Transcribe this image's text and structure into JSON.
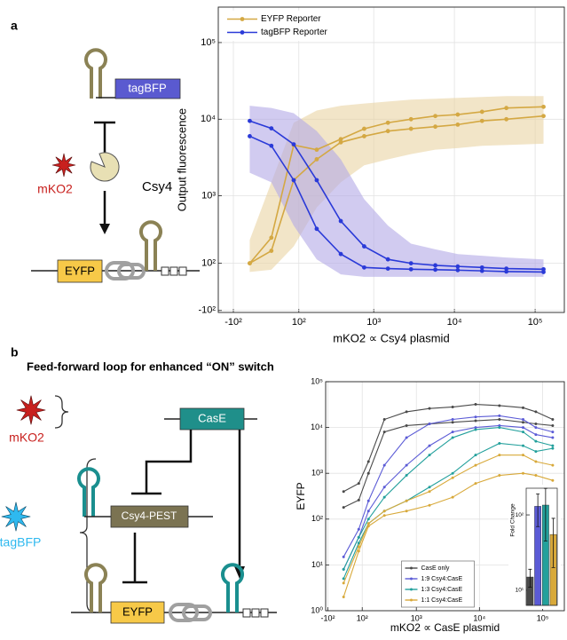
{
  "diagram": {
    "a": {
      "panel_label": "a",
      "reporter": "tagBFP",
      "marker": "mKO2",
      "protein": "Csy4",
      "output": "EYFP"
    },
    "b": {
      "panel_label": "b",
      "title": "Feed-forward loop for enhanced “ON” switch",
      "marker1": "mKO2",
      "marker2": "tagBFP",
      "node1": "CasE",
      "node2": "Csy4-PEST",
      "output": "EYFP"
    }
  },
  "chart_data": [
    {
      "type": "line",
      "xlabel": "mKO2 ∝ Csy4 plasmid",
      "ylabel": "Output fluorescence",
      "xscale": "biexponential",
      "yscale": "biexponential",
      "xlim": [
        -170,
        230000
      ],
      "ylim": [
        -110,
        290000
      ],
      "xticks": [
        {
          "value": -100,
          "label": "-10²"
        },
        {
          "value": 100,
          "label": "10²"
        },
        {
          "value": 1000,
          "label": "10³"
        },
        {
          "value": 10000,
          "label": "10⁴"
        },
        {
          "value": 100000,
          "label": "10⁵"
        }
      ],
      "yticks": [
        {
          "value": -100,
          "label": "-10²"
        },
        {
          "value": 100,
          "label": "10²"
        },
        {
          "value": 1000,
          "label": "10³"
        },
        {
          "value": 10000,
          "label": "10⁴"
        },
        {
          "value": 100000,
          "label": "10⁵"
        }
      ],
      "grid": true,
      "legend": "upper left",
      "x": [
        -45,
        14,
        81,
        186,
        386,
        760,
        1500,
        2900,
        5800,
        11000,
        22000,
        44000,
        127000
      ],
      "series": [
        {
          "name": "EYFP Reporter",
          "color": "#d4a843",
          "band_color": "#e9d3a3",
          "lines": [
            [
              100,
              270,
              4600,
              4000,
              5500,
              7500,
              9000,
              10000,
              11000,
              11500,
              12500,
              14000,
              14500
            ],
            [
              100,
              170,
              1600,
              3000,
              5000,
              6000,
              7000,
              7500,
              8000,
              8500,
              9500,
              10000,
              11000
            ]
          ],
          "band_upper": [
            250,
            1500,
            9000,
            13000,
            15000,
            16000,
            17000,
            18000,
            18500,
            19000,
            19500,
            20000,
            20000
          ],
          "band_lower": [
            60,
            70,
            200,
            700,
            1500,
            2500,
            3000,
            3500,
            4000,
            4200,
            4500,
            4600,
            4800
          ]
        },
        {
          "name": "tagBFP Reporter",
          "color": "#2a3ad8",
          "band_color": "#b3a8e6",
          "lines": [
            [
              9500,
              7600,
              4700,
              1600,
              460,
              200,
              120,
              100,
              90,
              85,
              80,
              75,
              72
            ],
            [
              6000,
              4500,
              1600,
              360,
              150,
              80,
              75,
              72,
              70,
              68,
              65,
              62,
              60
            ]
          ],
          "band_upper": [
            15000,
            14000,
            12000,
            7000,
            3000,
            900,
            400,
            220,
            180,
            150,
            140,
            130,
            120
          ],
          "band_lower": [
            2000,
            1500,
            400,
            120,
            50,
            40,
            40,
            40,
            40,
            40,
            40,
            40,
            40
          ]
        }
      ]
    },
    {
      "type": "line",
      "xlabel": "mKO2 ∝ CasE plasmid",
      "ylabel": "EYFP",
      "xscale": "biexponential",
      "yscale": "log",
      "xlim": [
        -115,
        220000
      ],
      "ylim": [
        1,
        100000
      ],
      "xticks": [
        {
          "value": -100,
          "label": "-10²"
        },
        {
          "value": 100,
          "label": "10²"
        },
        {
          "value": 1000,
          "label": "10³"
        },
        {
          "value": 10000,
          "label": "10⁴"
        },
        {
          "value": 100000,
          "label": "10⁵"
        }
      ],
      "yticks": [
        {
          "value": 1,
          "label": "10⁰"
        },
        {
          "value": 10,
          "label": "10¹"
        },
        {
          "value": 100,
          "label": "10²"
        },
        {
          "value": 1000,
          "label": "10³"
        },
        {
          "value": 10000,
          "label": "10⁴"
        },
        {
          "value": 100000,
          "label": "10⁵"
        }
      ],
      "grid": true,
      "legend": "lower center",
      "x": [
        -8,
        78,
        144,
        296,
        695,
        1620,
        3770,
        8700,
        20700,
        49000,
        78000,
        144000
      ],
      "series": [
        {
          "name": "CasE only",
          "color": "#4a4a4a",
          "lines": [
            [
              400,
              600,
              1800,
              15000,
              22000,
              26000,
              28000,
              32000,
              30000,
              27000,
              22000,
              15000
            ],
            [
              180,
              260,
              1000,
              8000,
              11000,
              12000,
              13000,
              14000,
              15000,
              13000,
              12000,
              11000
            ]
          ]
        },
        {
          "name": "1:9 Csy4:CasE",
          "color": "#5b5bd6",
          "lines": [
            [
              15,
              60,
              250,
              1500,
              6000,
              12000,
              15000,
              17000,
              18000,
              15000,
              10000,
              8000
            ],
            [
              8,
              40,
              150,
              500,
              1500,
              4000,
              8000,
              10000,
              11000,
              10000,
              7000,
              6000
            ]
          ]
        },
        {
          "name": "1:3 Csy4:CasE",
          "color": "#23a09c",
          "lines": [
            [
              8,
              40,
              100,
              300,
              900,
              2500,
              6000,
              9000,
              10000,
              8000,
              5000,
              4000
            ],
            [
              5,
              30,
              80,
              150,
              250,
              500,
              1000,
              2500,
              4500,
              4000,
              3000,
              3500
            ]
          ]
        },
        {
          "name": "1:1 Csy4:CasE",
          "color": "#d8a93a",
          "lines": [
            [
              4,
              25,
              80,
              150,
              250,
              400,
              800,
              1500,
              2500,
              2500,
              1800,
              1500
            ],
            [
              2,
              20,
              70,
              120,
              150,
              200,
              300,
              600,
              900,
              1000,
              900,
              700
            ]
          ]
        }
      ]
    },
    {
      "type": "bar",
      "ylabel": "Fold Change",
      "yscale": "log",
      "ylim": [
        6.3,
        226
      ],
      "yticks": [
        {
          "value": 10,
          "label": "10¹"
        },
        {
          "value": 100,
          "label": "10²"
        }
      ],
      "values": [
        15,
        130,
        135,
        55
      ],
      "errors": [
        4,
        60,
        90,
        35
      ],
      "colors": [
        "#4a4a4a",
        "#5b5bd6",
        "#23a09c",
        "#d8a93a"
      ]
    }
  ]
}
